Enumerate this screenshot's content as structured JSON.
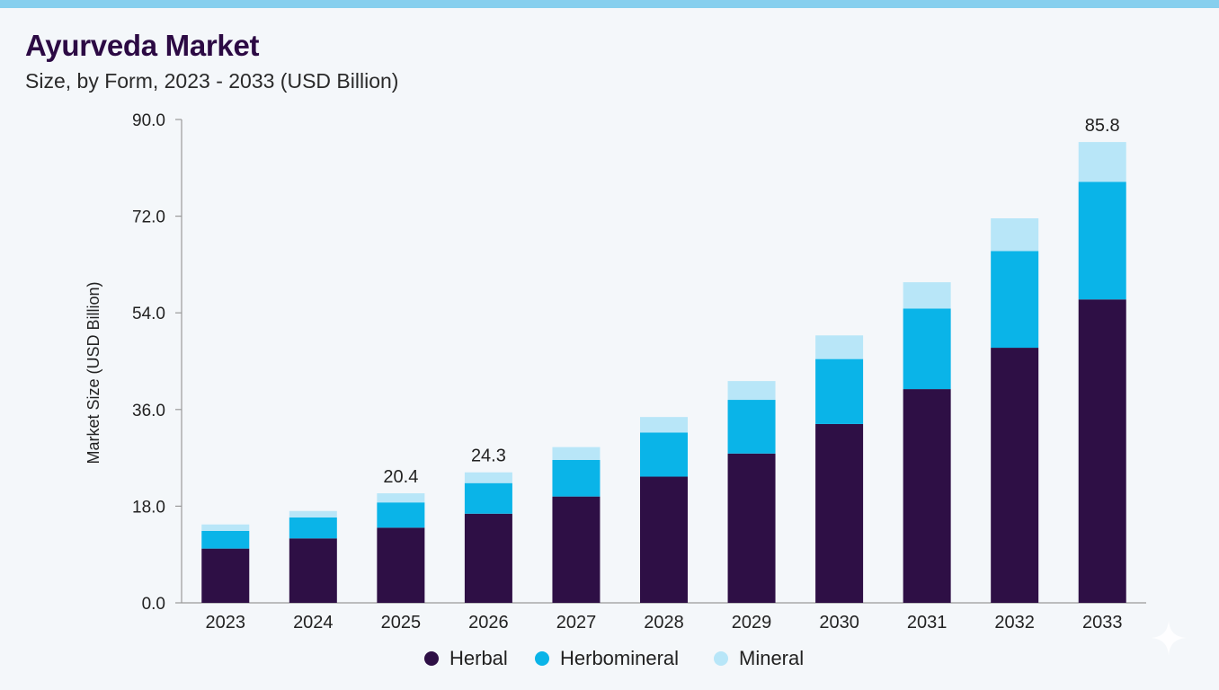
{
  "header": {
    "title": "Ayurveda Market",
    "subtitle": "Size, by Form, 2023 - 2033 (USD Billion)"
  },
  "colors": {
    "accent_bar": "#86cfee",
    "title": "#2c0a44"
  },
  "chart_data": {
    "type": "bar",
    "stacked": true,
    "categories": [
      "2023",
      "2024",
      "2025",
      "2026",
      "2027",
      "2028",
      "2029",
      "2030",
      "2031",
      "2032",
      "2033"
    ],
    "series": [
      {
        "name": "Herbal",
        "color": "#2e0f45",
        "values": [
          10.1,
          12.0,
          14.0,
          16.6,
          19.8,
          23.5,
          27.8,
          33.3,
          39.8,
          47.5,
          56.5
        ]
      },
      {
        "name": "Herbomineral",
        "color": "#0ab4e8",
        "values": [
          3.3,
          3.9,
          4.7,
          5.7,
          6.8,
          8.2,
          10.0,
          12.1,
          15.0,
          18.0,
          21.9
        ]
      },
      {
        "name": "Mineral",
        "color": "#b8e6f8",
        "values": [
          1.2,
          1.2,
          1.7,
          2.0,
          2.4,
          2.9,
          3.5,
          4.4,
          4.9,
          6.1,
          7.4
        ]
      }
    ],
    "totals_labeled": {
      "2025": "20.4",
      "2026": "24.3",
      "2033": "85.8"
    },
    "ylabel": "Market Size (USD Billion)",
    "xlabel": "",
    "ylim": [
      0,
      90
    ],
    "yticks": [
      "0.0",
      "18.0",
      "36.0",
      "54.0",
      "72.0",
      "90.0"
    ],
    "grid": false,
    "legend_position": "bottom-center"
  },
  "legend": {
    "items": [
      {
        "label": "Herbal",
        "color": "#2e0f45"
      },
      {
        "label": "Herbomineral",
        "color": "#0ab4e8"
      },
      {
        "label": "Mineral",
        "color": "#b8e6f8"
      }
    ]
  },
  "icons": {
    "watermark": "sparkle-icon"
  }
}
